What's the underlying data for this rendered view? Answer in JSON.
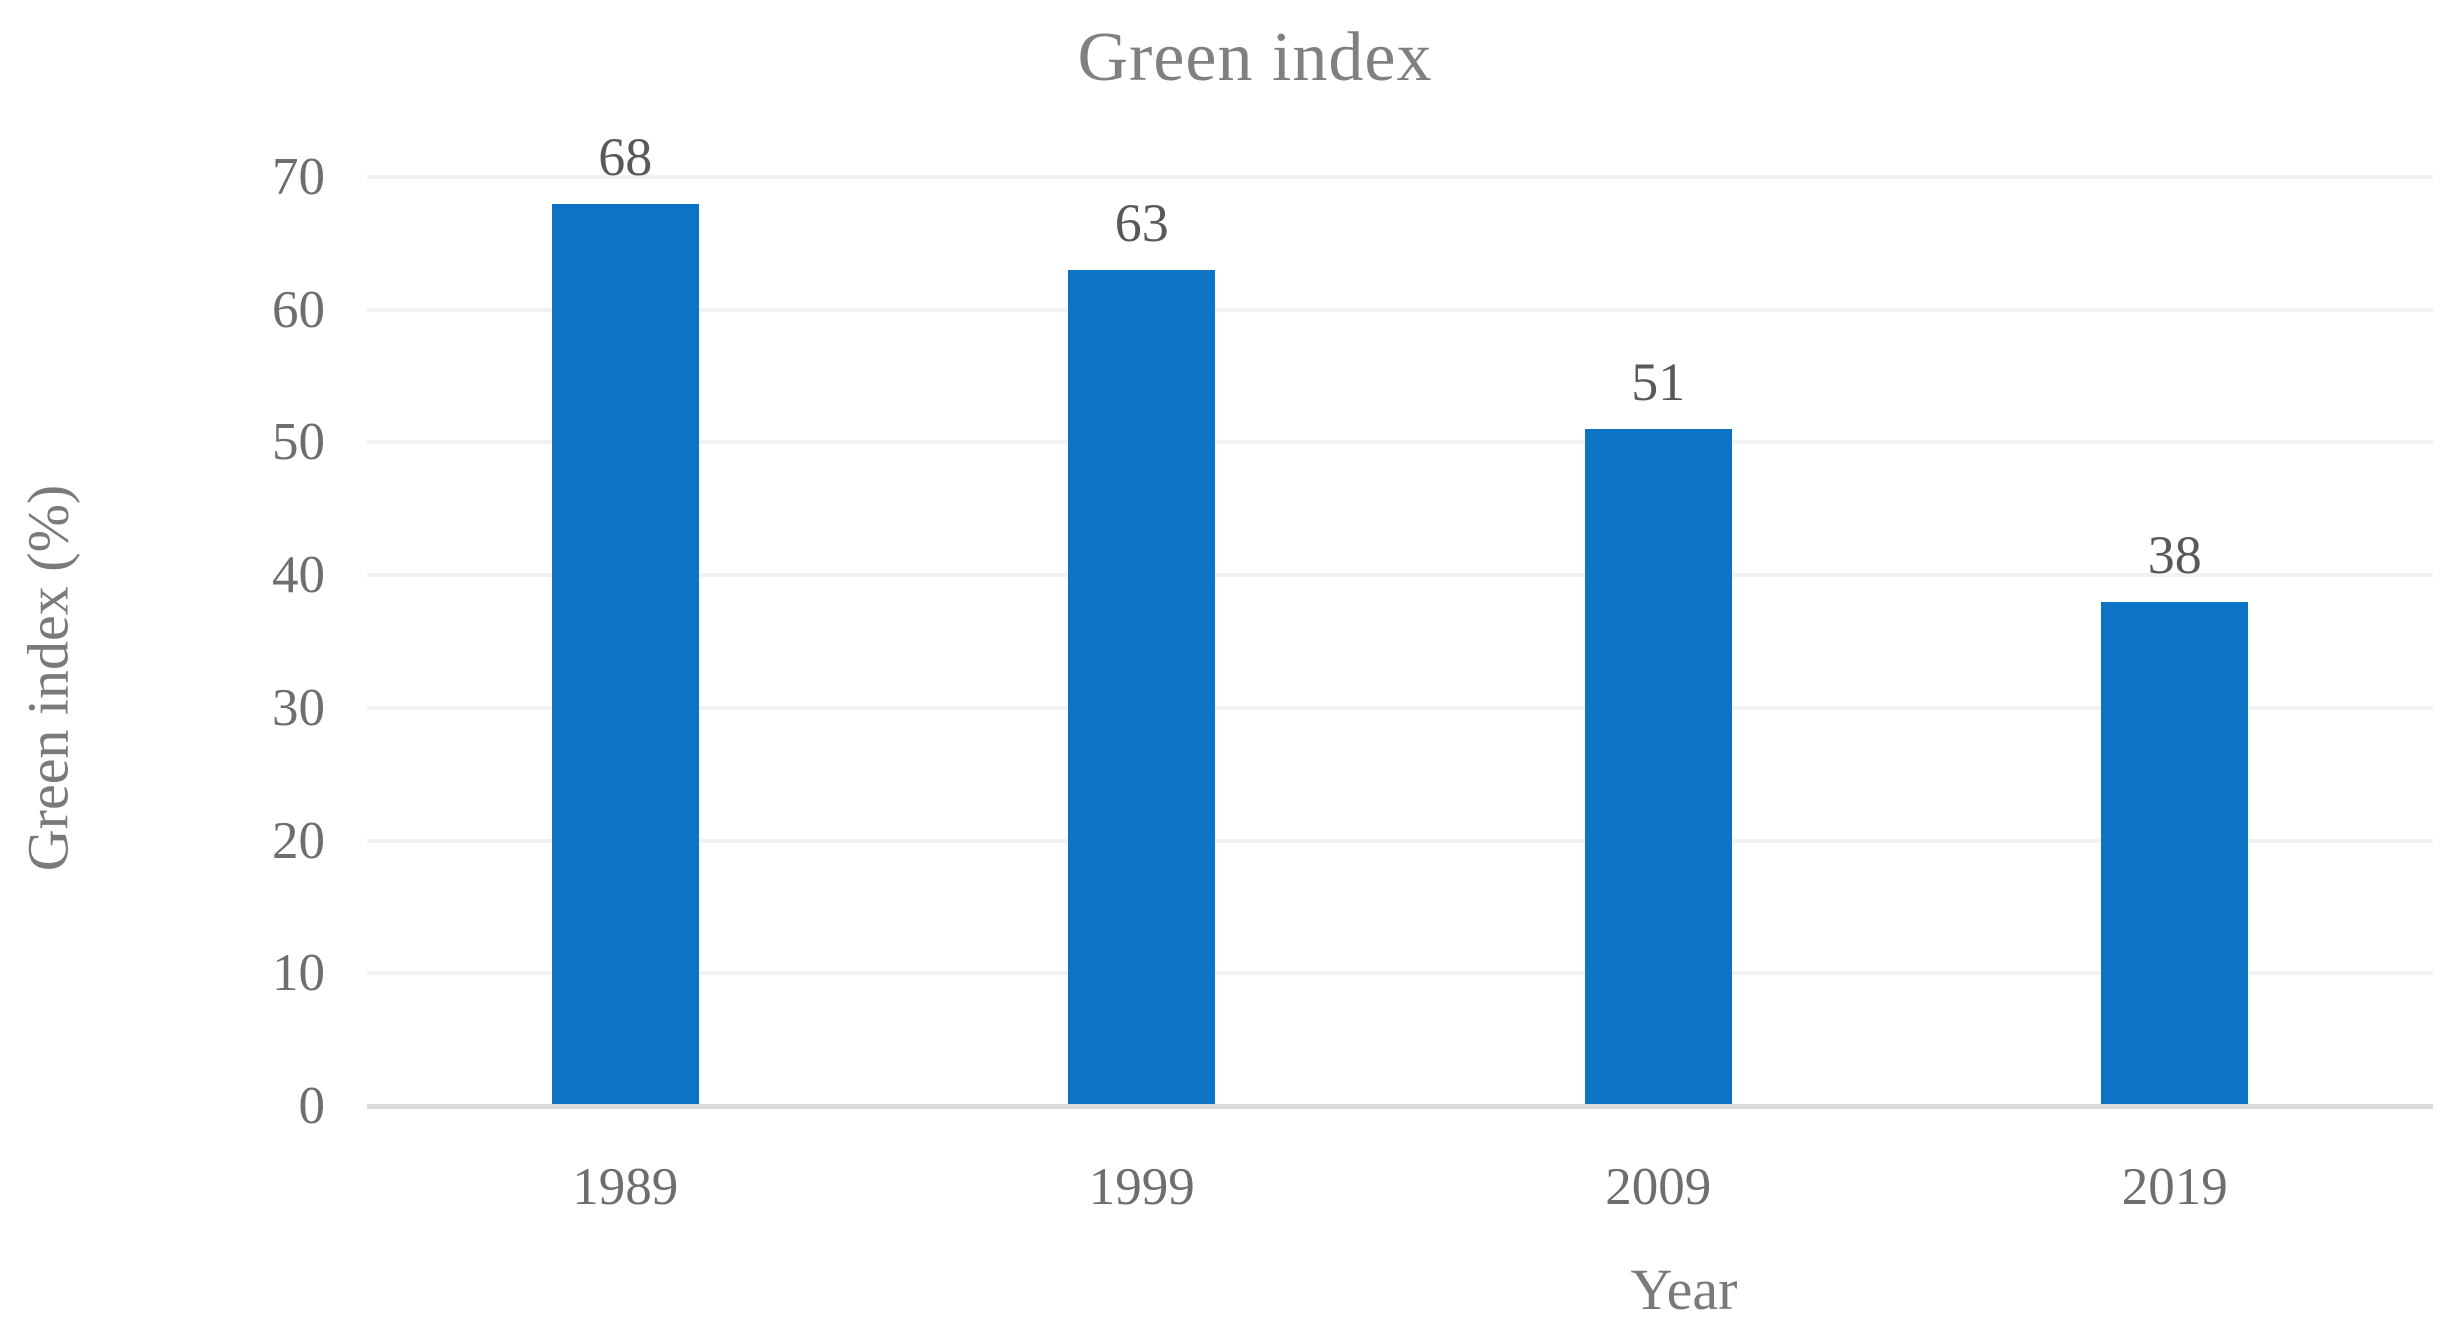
{
  "chart_data": {
    "type": "bar",
    "title": "Green index",
    "categories": [
      "1989",
      "1999",
      "2009",
      "2019"
    ],
    "values": [
      68,
      63,
      51,
      38
    ],
    "data_labels": [
      "68",
      "63",
      "51",
      "38"
    ],
    "xlabel": "Year",
    "ylabel": "Green index (%)",
    "ylim": [
      0,
      70
    ],
    "ytick_step": 10,
    "yticks": [
      "0",
      "10",
      "20",
      "30",
      "40",
      "50",
      "60",
      "70"
    ],
    "grid": true,
    "legend_position": "none",
    "colors": {
      "bar": "#0d73c4",
      "gridline": "#f2f2f2",
      "axis_line": "#d9d9d9",
      "title_text": "#808080",
      "axis_title_text": "#7a7a7a",
      "tick_text": "#6e6e6e",
      "data_label_text": "#595959"
    }
  }
}
